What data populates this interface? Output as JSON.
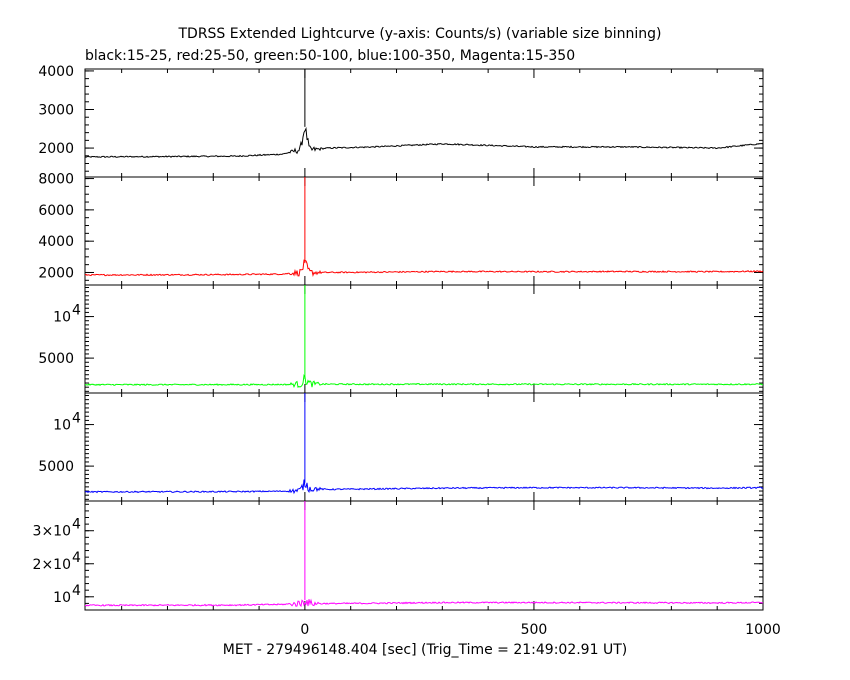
{
  "chart_data": {
    "type": "line",
    "title": "TDRSS Extended Lightcurve (y-axis: Counts/s) (variable size binning)",
    "subtitle": "black:15-25, red:25-50, green:50-100, blue:100-350, Magenta:15-350",
    "xlabel": "MET - 279496148.404 [sec] (Trig_Time = 21:49:02.91 UT)",
    "xlim": [
      -480,
      1000
    ],
    "x_ticks": [
      {
        "value": 0,
        "label": "0"
      },
      {
        "value": 500,
        "label": "500"
      },
      {
        "value": 1000,
        "label": "1000"
      }
    ],
    "trigger_x": 0,
    "panels": [
      {
        "name": "black:15-25",
        "color": "#000000",
        "ylim": [
          1250,
          4050
        ],
        "spike_peak": 4050,
        "y_ticks": [
          {
            "value": 4000,
            "label": "4000"
          },
          {
            "value": 3000,
            "label": "3000"
          },
          {
            "value": 2000,
            "label": "2000"
          }
        ],
        "x": [
          -480,
          -300,
          -150,
          -50,
          -10,
          0,
          10,
          50,
          150,
          300,
          500,
          700,
          900,
          1000
        ],
        "y": [
          1770,
          1780,
          1790,
          1840,
          1960,
          2550,
          1950,
          2000,
          2030,
          2110,
          2030,
          2030,
          2000,
          2120
        ]
      },
      {
        "name": "red:25-50",
        "color": "#ff0000",
        "ylim": [
          1200,
          8100
        ],
        "spike_peak": 8100,
        "y_ticks": [
          {
            "value": 8000,
            "label": "8000"
          },
          {
            "value": 6000,
            "label": "6000"
          },
          {
            "value": 4000,
            "label": "4000"
          },
          {
            "value": 2000,
            "label": "2000"
          }
        ],
        "x": [
          -480,
          -300,
          -150,
          -50,
          -10,
          0,
          10,
          50,
          150,
          300,
          500,
          700,
          900,
          1000
        ],
        "y": [
          1840,
          1850,
          1870,
          1900,
          2000,
          2600,
          2000,
          2000,
          2020,
          2060,
          2050,
          2060,
          2050,
          2080
        ]
      },
      {
        "name": "green:50-100",
        "color": "#00ff00",
        "ylim": [
          800,
          13800
        ],
        "spike_peak": 13800,
        "y_ticks": [
          {
            "value": 10000,
            "label": "10",
            "exp": "4"
          },
          {
            "value": 5000,
            "label": "5000"
          }
        ],
        "x": [
          -480,
          -300,
          -150,
          -50,
          -10,
          0,
          10,
          50,
          150,
          300,
          500,
          700,
          900,
          1000
        ],
        "y": [
          1800,
          1800,
          1810,
          1820,
          1850,
          2500,
          1900,
          1860,
          1850,
          1860,
          1850,
          1850,
          1850,
          1860
        ]
      },
      {
        "name": "blue:100-350",
        "color": "#0000ff",
        "ylim": [
          800,
          13800
        ],
        "spike_peak": 13800,
        "y_ticks": [
          {
            "value": 10000,
            "label": "10",
            "exp": "4"
          },
          {
            "value": 5000,
            "label": "5000"
          }
        ],
        "x": [
          -480,
          -300,
          -150,
          -50,
          -10,
          0,
          10,
          50,
          150,
          300,
          500,
          700,
          900,
          1000
        ],
        "y": [
          1900,
          1910,
          1930,
          1980,
          2050,
          3000,
          2300,
          2200,
          2250,
          2350,
          2400,
          2400,
          2350,
          2400
        ]
      },
      {
        "name": "Magenta:15-350",
        "color": "#ff00ff",
        "ylim": [
          6000,
          39000
        ],
        "spike_peak": 39000,
        "y_ticks": [
          {
            "value": 30000,
            "label": "3×10",
            "exp": "4"
          },
          {
            "value": 20000,
            "label": "2×10",
            "exp": "4"
          },
          {
            "value": 10000,
            "label": "10",
            "exp": "4"
          }
        ],
        "x": [
          -480,
          -300,
          -150,
          -50,
          -10,
          0,
          10,
          50,
          150,
          300,
          500,
          700,
          900,
          1000
        ],
        "y": [
          7400,
          7450,
          7500,
          7700,
          7900,
          9000,
          8000,
          7950,
          8050,
          8250,
          8250,
          8200,
          8150,
          8250
        ]
      }
    ]
  }
}
